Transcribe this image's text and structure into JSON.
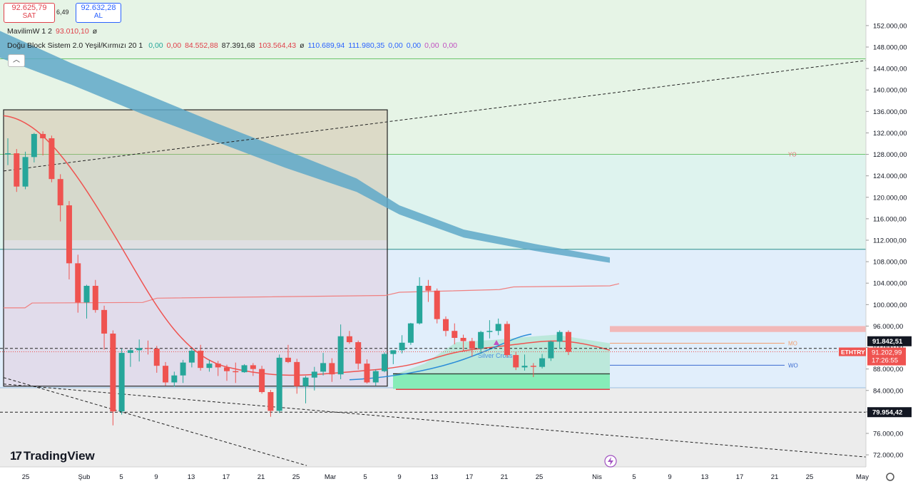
{
  "header": {
    "sell": {
      "price": "92.625,79",
      "label": "SAT"
    },
    "spread": "6,49",
    "buy": {
      "price": "92.632,28",
      "label": "AL"
    }
  },
  "indicators": {
    "mavilim": {
      "name": "MavilimW 1 2",
      "value": "93.010,10",
      "icon": "ø"
    },
    "dogu": {
      "name": "Doğu Block Sistem 2.0 Yeşil/Kırmızı 20 1",
      "values": [
        "0,00",
        "0,00",
        "84.552,88",
        "87.391,68",
        "103.564,43",
        "ø",
        "110.689,94",
        "111.980,35",
        "0,00",
        "0,00",
        "0,00",
        "0,00"
      ]
    }
  },
  "logo": {
    "text": "TradingView"
  },
  "colors": {
    "up": "#26a69a",
    "down": "#ef5350",
    "accent": "#2962ff",
    "band": "#5fa8c8"
  },
  "chart_data": {
    "type": "candlestick",
    "symbol": "ETHTRY",
    "current_price": "91.202,99",
    "countdown": "17:26:55",
    "price_markers": [
      "91.842,51",
      "79.954,42"
    ],
    "y_ticks": [
      "152.000,00",
      "148.000,00",
      "144.000,00",
      "140.000,00",
      "136.000,00",
      "132.000,00",
      "128.000,00",
      "124.000,00",
      "120.000,00",
      "116.000,00",
      "112.000,00",
      "108.000,00",
      "104.000,00",
      "100.000,00",
      "96.000,00",
      "92.000,00",
      "88.000,00",
      "84.000,00",
      "80.000,00",
      "76.000,00",
      "72.000,00"
    ],
    "x_ticks": [
      "25",
      "Şub",
      "5",
      "9",
      "13",
      "17",
      "21",
      "25",
      "Mar",
      "5",
      "9",
      "13",
      "17",
      "21",
      "25",
      "Nis",
      "5",
      "9",
      "13",
      "17",
      "21",
      "25",
      "May"
    ],
    "ylim": [
      69000,
      153500
    ],
    "level_labels": {
      "yo": "YO",
      "mo": "MO",
      "wo": "WO"
    },
    "levels": {
      "yo": 128000,
      "mo": 92800,
      "wo": 88700,
      "top": 110300,
      "support": 79954
    },
    "annotation": "Silver Cross",
    "candles": [
      {
        "o": 128000,
        "h": 131000,
        "l": 126000,
        "c": 128200
      },
      {
        "o": 128200,
        "h": 129000,
        "l": 121000,
        "c": 122000
      },
      {
        "o": 122000,
        "h": 128500,
        "l": 121500,
        "c": 127500
      },
      {
        "o": 127500,
        "h": 132000,
        "l": 126500,
        "c": 131800
      },
      {
        "o": 131800,
        "h": 132300,
        "l": 127800,
        "c": 131000
      },
      {
        "o": 131000,
        "h": 131500,
        "l": 122800,
        "c": 123400
      },
      {
        "o": 123400,
        "h": 124300,
        "l": 115500,
        "c": 118500
      },
      {
        "o": 118500,
        "h": 119300,
        "l": 104700,
        "c": 107700
      },
      {
        "o": 107700,
        "h": 109300,
        "l": 98500,
        "c": 100400
      },
      {
        "o": 100400,
        "h": 103700,
        "l": 97400,
        "c": 103500
      },
      {
        "o": 103500,
        "h": 104600,
        "l": 98500,
        "c": 99000
      },
      {
        "o": 99000,
        "h": 99800,
        "l": 91600,
        "c": 94600
      },
      {
        "o": 94600,
        "h": 95200,
        "l": 77500,
        "c": 80100
      },
      {
        "o": 80100,
        "h": 91800,
        "l": 79500,
        "c": 91000
      },
      {
        "o": 91000,
        "h": 91800,
        "l": 88400,
        "c": 91500
      },
      {
        "o": 91500,
        "h": 93500,
        "l": 89400,
        "c": 91900
      },
      {
        "o": 91900,
        "h": 93300,
        "l": 90700,
        "c": 91800
      },
      {
        "o": 91800,
        "h": 92300,
        "l": 87300,
        "c": 88600
      },
      {
        "o": 88600,
        "h": 89300,
        "l": 84900,
        "c": 85500
      },
      {
        "o": 85500,
        "h": 87500,
        "l": 84700,
        "c": 86800
      },
      {
        "o": 86800,
        "h": 89700,
        "l": 85400,
        "c": 89200
      },
      {
        "o": 89200,
        "h": 91800,
        "l": 88300,
        "c": 91400
      },
      {
        "o": 91400,
        "h": 92500,
        "l": 87700,
        "c": 88200
      },
      {
        "o": 88200,
        "h": 89700,
        "l": 87500,
        "c": 89000
      },
      {
        "o": 89000,
        "h": 89500,
        "l": 86700,
        "c": 88300
      },
      {
        "o": 88300,
        "h": 88800,
        "l": 85800,
        "c": 87600
      },
      {
        "o": 87600,
        "h": 89200,
        "l": 85400,
        "c": 87400
      },
      {
        "o": 87400,
        "h": 88900,
        "l": 87300,
        "c": 88700
      },
      {
        "o": 88700,
        "h": 89100,
        "l": 86700,
        "c": 88000
      },
      {
        "o": 88000,
        "h": 88600,
        "l": 83400,
        "c": 83700
      },
      {
        "o": 83700,
        "h": 84100,
        "l": 79100,
        "c": 80200
      },
      {
        "o": 80200,
        "h": 90700,
        "l": 79800,
        "c": 90100
      },
      {
        "o": 90100,
        "h": 92500,
        "l": 89100,
        "c": 89300
      },
      {
        "o": 89300,
        "h": 89900,
        "l": 83400,
        "c": 84800
      },
      {
        "o": 84800,
        "h": 86700,
        "l": 81600,
        "c": 86400
      },
      {
        "o": 86400,
        "h": 88400,
        "l": 84000,
        "c": 87500
      },
      {
        "o": 87500,
        "h": 91000,
        "l": 86800,
        "c": 89100
      },
      {
        "o": 89100,
        "h": 90000,
        "l": 85600,
        "c": 87000
      },
      {
        "o": 87000,
        "h": 96300,
        "l": 86100,
        "c": 94100
      },
      {
        "o": 94100,
        "h": 95100,
        "l": 92700,
        "c": 93000
      },
      {
        "o": 93000,
        "h": 93300,
        "l": 87900,
        "c": 89000
      },
      {
        "o": 89000,
        "h": 89800,
        "l": 85300,
        "c": 85500
      },
      {
        "o": 85500,
        "h": 87900,
        "l": 84900,
        "c": 87600
      },
      {
        "o": 87600,
        "h": 91100,
        "l": 87400,
        "c": 90800
      },
      {
        "o": 90800,
        "h": 91200,
        "l": 88900,
        "c": 91500
      },
      {
        "o": 91500,
        "h": 94300,
        "l": 90900,
        "c": 92900
      },
      {
        "o": 92900,
        "h": 96600,
        "l": 92500,
        "c": 96500
      },
      {
        "o": 96500,
        "h": 105100,
        "l": 96300,
        "c": 103500
      },
      {
        "o": 103500,
        "h": 104600,
        "l": 100500,
        "c": 102600
      },
      {
        "o": 102600,
        "h": 103000,
        "l": 96500,
        "c": 97300
      },
      {
        "o": 97300,
        "h": 97800,
        "l": 94100,
        "c": 95100
      },
      {
        "o": 95100,
        "h": 96500,
        "l": 92600,
        "c": 93800
      },
      {
        "o": 93800,
        "h": 94400,
        "l": 91400,
        "c": 93200
      },
      {
        "o": 93200,
        "h": 93800,
        "l": 90300,
        "c": 91800
      },
      {
        "o": 91800,
        "h": 95100,
        "l": 90900,
        "c": 94900
      },
      {
        "o": 94900,
        "h": 97100,
        "l": 93700,
        "c": 95100
      },
      {
        "o": 95100,
        "h": 97400,
        "l": 94300,
        "c": 96400
      },
      {
        "o": 96400,
        "h": 96900,
        "l": 90200,
        "c": 90600
      },
      {
        "o": 90600,
        "h": 91200,
        "l": 87800,
        "c": 88300
      },
      {
        "o": 88300,
        "h": 90700,
        "l": 87700,
        "c": 88600
      },
      {
        "o": 88600,
        "h": 89100,
        "l": 86500,
        "c": 88400
      },
      {
        "o": 88400,
        "h": 90800,
        "l": 88100,
        "c": 90000
      },
      {
        "o": 90000,
        "h": 93300,
        "l": 89500,
        "c": 93100
      },
      {
        "o": 93100,
        "h": 95200,
        "l": 91800,
        "c": 94900
      },
      {
        "o": 94900,
        "h": 95200,
        "l": 90600,
        "c": 91200
      }
    ]
  }
}
